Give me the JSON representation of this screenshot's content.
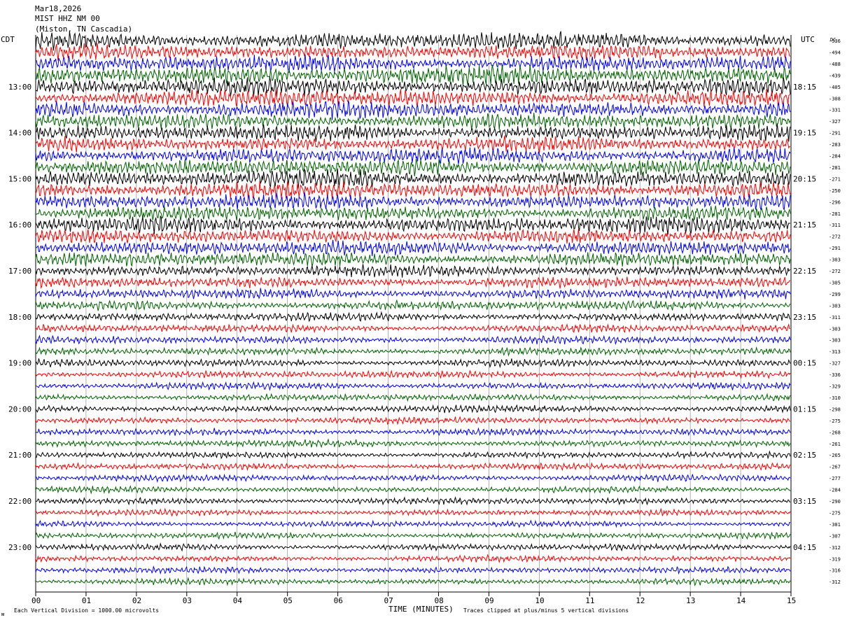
{
  "header": {
    "date": "Mar18,2026",
    "station": "MIST HHZ NM 00",
    "location": "(Miston, TN Cascadia)"
  },
  "left_tz": "CDT",
  "right_tz": "UTC",
  "dc_label": "DC",
  "footer": {
    "scale_note": "Each Vertical Division = 1000.00 microvolts",
    "clip_note": "Traces clipped at plus/minus 5 vertical divisions",
    "corner_mark": "ᴍ"
  },
  "colors": {
    "trace_cycle": [
      "#000000",
      "#ff0000",
      "#0000ff",
      "#006400"
    ],
    "grid": "#808080",
    "axis": "#000000"
  },
  "chart_data": {
    "type": "line",
    "title": "",
    "xlabel": "TIME (MINUTES)",
    "ylabel": "",
    "xlim": [
      0,
      15
    ],
    "x_ticks": [
      "00",
      "01",
      "02",
      "03",
      "04",
      "05",
      "06",
      "07",
      "08",
      "09",
      "10",
      "11",
      "12",
      "13",
      "14",
      "15"
    ],
    "grid": true,
    "trace_count": 48,
    "left_time_labels": [
      {
        "trace_index": 4,
        "label": "13:00"
      },
      {
        "trace_index": 8,
        "label": "14:00"
      },
      {
        "trace_index": 12,
        "label": "15:00"
      },
      {
        "trace_index": 16,
        "label": "16:00"
      },
      {
        "trace_index": 20,
        "label": "17:00"
      },
      {
        "trace_index": 24,
        "label": "18:00"
      },
      {
        "trace_index": 28,
        "label": "19:00"
      },
      {
        "trace_index": 32,
        "label": "20:00"
      },
      {
        "trace_index": 36,
        "label": "21:00"
      },
      {
        "trace_index": 40,
        "label": "22:00"
      },
      {
        "trace_index": 44,
        "label": "23:00"
      }
    ],
    "right_time_labels": [
      {
        "trace_index": 4,
        "label": "18:15"
      },
      {
        "trace_index": 8,
        "label": "19:15"
      },
      {
        "trace_index": 12,
        "label": "20:15"
      },
      {
        "trace_index": 16,
        "label": "21:15"
      },
      {
        "trace_index": 20,
        "label": "22:15"
      },
      {
        "trace_index": 24,
        "label": "23:15"
      },
      {
        "trace_index": 28,
        "label": "00:15"
      },
      {
        "trace_index": 32,
        "label": "01:15"
      },
      {
        "trace_index": 36,
        "label": "02:15"
      },
      {
        "trace_index": 40,
        "label": "03:15"
      },
      {
        "trace_index": 44,
        "label": "04:15"
      }
    ],
    "dc_offsets": [
      "-536",
      "-494",
      "-488",
      "-439",
      "-405",
      "-308",
      "-331",
      "-327",
      "-291",
      "-283",
      "-284",
      "-281",
      "-271",
      "-250",
      "-296",
      "-281",
      "-311",
      "-272",
      "-291",
      "-303",
      "-272",
      "-305",
      "-299",
      "-303",
      "-311",
      "-303",
      "-303",
      "-313",
      "-327",
      "-336",
      "-329",
      "-310",
      "-298",
      "-275",
      "-268",
      "-261",
      "-265",
      "-267",
      "-277",
      "-284",
      "-290",
      "-275",
      "-301",
      "-307",
      "-312",
      "-319",
      "-316",
      "-312"
    ],
    "trace_amplitude": [
      1.0,
      0.9,
      0.95,
      1.1,
      1.05,
      1.0,
      1.0,
      0.9,
      0.95,
      0.85,
      0.9,
      1.0,
      1.0,
      0.95,
      0.9,
      0.85,
      0.95,
      0.8,
      0.85,
      0.8,
      0.7,
      0.65,
      0.6,
      0.55,
      0.5,
      0.45,
      0.45,
      0.45,
      0.45,
      0.42,
      0.4,
      0.4,
      0.42,
      0.4,
      0.4,
      0.4,
      0.38,
      0.38,
      0.38,
      0.36,
      0.38,
      0.36,
      0.36,
      0.36,
      0.38,
      0.36,
      0.36,
      0.36
    ]
  }
}
